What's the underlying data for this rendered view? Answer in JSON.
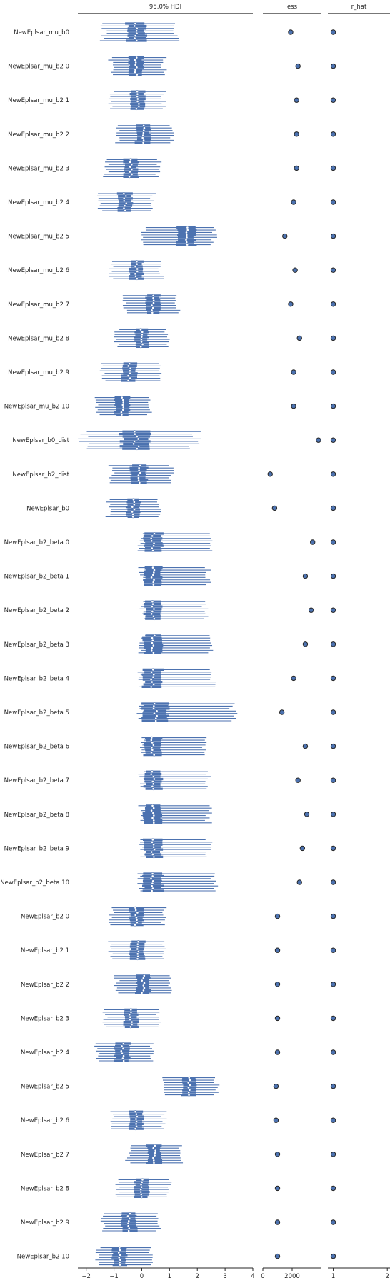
{
  "chart_data": {
    "type": "forest",
    "panels": [
      {
        "key": "hdi",
        "title": "95.0% HDI",
        "xlim": [
          -2.3,
          4.0
        ],
        "ticks": [
          -2,
          -1,
          0,
          1,
          2,
          3,
          4
        ],
        "tick_labels": [
          "−2",
          "−1",
          "0",
          "1",
          "2",
          "3",
          "4"
        ]
      },
      {
        "key": "ess",
        "title": "ess",
        "xlim": [
          0,
          4000
        ],
        "ticks": [
          0,
          2000
        ],
        "tick_labels": [
          "0",
          "2000"
        ]
      },
      {
        "key": "r_hat",
        "title": "r_hat",
        "xlim": [
          0.9,
          2.05
        ],
        "ticks": [
          1,
          2
        ],
        "tick_labels": [
          "1",
          "2"
        ]
      }
    ],
    "parameters": [
      {
        "label": "NewEplsar_mu_b0",
        "median": -0.2,
        "lower": -1.4,
        "upper": 1.2,
        "ess": 1900,
        "r_hat": 1.0
      },
      {
        "label": "NewEplsar_mu_b2 0",
        "median": -0.2,
        "lower": -1.1,
        "upper": 0.8,
        "ess": 2400,
        "r_hat": 1.0
      },
      {
        "label": "NewEplsar_mu_b2 1",
        "median": -0.15,
        "lower": -1.1,
        "upper": 0.8,
        "ess": 2300,
        "r_hat": 1.0
      },
      {
        "label": "NewEplsar_mu_b2 2",
        "median": 0.05,
        "lower": -0.9,
        "upper": 1.1,
        "ess": 2300,
        "r_hat": 1.0
      },
      {
        "label": "NewEplsar_mu_b2 3",
        "median": -0.4,
        "lower": -1.3,
        "upper": 0.6,
        "ess": 2300,
        "r_hat": 1.0
      },
      {
        "label": "NewEplsar_mu_b2 4",
        "median": -0.6,
        "lower": -1.5,
        "upper": 0.4,
        "ess": 2100,
        "r_hat": 1.0
      },
      {
        "label": "NewEplsar_mu_b2 5",
        "median": 1.6,
        "lower": 0.1,
        "upper": 2.6,
        "ess": 1500,
        "r_hat": 1.0
      },
      {
        "label": "NewEplsar_mu_b2 6",
        "median": -0.2,
        "lower": -1.1,
        "upper": 0.7,
        "ess": 2200,
        "r_hat": 1.0
      },
      {
        "label": "NewEplsar_mu_b2 7",
        "median": 0.4,
        "lower": -0.6,
        "upper": 1.3,
        "ess": 1900,
        "r_hat": 1.0
      },
      {
        "label": "NewEplsar_mu_b2 8",
        "median": 0.0,
        "lower": -0.9,
        "upper": 0.9,
        "ess": 2500,
        "r_hat": 1.0
      },
      {
        "label": "NewEplsar_mu_b2 9",
        "median": -0.45,
        "lower": -1.4,
        "upper": 0.6,
        "ess": 2100,
        "r_hat": 1.0
      },
      {
        "label": "NewEplsar_mu_b2 10",
        "median": -0.7,
        "lower": -1.6,
        "upper": 0.3,
        "ess": 2100,
        "r_hat": 1.0
      },
      {
        "label": "NewEplsar_b0_dist",
        "median": -0.2,
        "lower": -2.1,
        "upper": 1.9,
        "ess": 3800,
        "r_hat": 1.0
      },
      {
        "label": "NewEplsar_b2_dist",
        "median": -0.1,
        "lower": -1.1,
        "upper": 1.1,
        "ess": 500,
        "r_hat": 1.0
      },
      {
        "label": "NewEplsar_b0",
        "median": -0.3,
        "lower": -1.2,
        "upper": 0.6,
        "ess": 800,
        "r_hat": 1.0
      },
      {
        "label": "NewEplsar_b2_beta 0",
        "median": 0.4,
        "lower": 0.0,
        "upper": 2.5,
        "ess": 3400,
        "r_hat": 1.0
      },
      {
        "label": "NewEplsar_b2_beta 1",
        "median": 0.4,
        "lower": 0.0,
        "upper": 2.4,
        "ess": 2900,
        "r_hat": 1.0
      },
      {
        "label": "NewEplsar_b2_beta 2",
        "median": 0.4,
        "lower": 0.0,
        "upper": 2.3,
        "ess": 3300,
        "r_hat": 1.0
      },
      {
        "label": "NewEplsar_b2_beta 3",
        "median": 0.4,
        "lower": 0.0,
        "upper": 2.5,
        "ess": 2900,
        "r_hat": 1.0
      },
      {
        "label": "NewEplsar_b2_beta 4",
        "median": 0.4,
        "lower": 0.0,
        "upper": 2.6,
        "ess": 2100,
        "r_hat": 1.0
      },
      {
        "label": "NewEplsar_b2_beta 5",
        "median": 0.5,
        "lower": 0.0,
        "upper": 3.3,
        "ess": 1300,
        "r_hat": 1.0
      },
      {
        "label": "NewEplsar_b2_beta 6",
        "median": 0.4,
        "lower": 0.0,
        "upper": 2.3,
        "ess": 2900,
        "r_hat": 1.0
      },
      {
        "label": "NewEplsar_b2_beta 7",
        "median": 0.4,
        "lower": 0.0,
        "upper": 2.4,
        "ess": 2400,
        "r_hat": 1.0
      },
      {
        "label": "NewEplsar_b2_beta 8",
        "median": 0.4,
        "lower": 0.0,
        "upper": 2.4,
        "ess": 3000,
        "r_hat": 1.0
      },
      {
        "label": "NewEplsar_b2_beta 9",
        "median": 0.4,
        "lower": 0.0,
        "upper": 2.4,
        "ess": 2700,
        "r_hat": 1.0
      },
      {
        "label": "NewEplsar_b2_beta 10",
        "median": 0.4,
        "lower": 0.0,
        "upper": 2.6,
        "ess": 2500,
        "r_hat": 1.0
      },
      {
        "label": "NewEplsar_b2 0",
        "median": -0.2,
        "lower": -1.1,
        "upper": 0.8,
        "ess": 1000,
        "r_hat": 1.0
      },
      {
        "label": "NewEplsar_b2 1",
        "median": -0.15,
        "lower": -1.1,
        "upper": 0.8,
        "ess": 1000,
        "r_hat": 1.0
      },
      {
        "label": "NewEplsar_b2 2",
        "median": 0.05,
        "lower": -0.9,
        "upper": 1.0,
        "ess": 1000,
        "r_hat": 1.0
      },
      {
        "label": "NewEplsar_b2 3",
        "median": -0.4,
        "lower": -1.3,
        "upper": 0.6,
        "ess": 1000,
        "r_hat": 1.0
      },
      {
        "label": "NewEplsar_b2 4",
        "median": -0.7,
        "lower": -1.6,
        "upper": 0.4,
        "ess": 1000,
        "r_hat": 1.0
      },
      {
        "label": "NewEplsar_b2 5",
        "median": 1.7,
        "lower": 0.8,
        "upper": 2.7,
        "ess": 900,
        "r_hat": 1.0
      },
      {
        "label": "NewEplsar_b2 6",
        "median": -0.2,
        "lower": -1.1,
        "upper": 0.8,
        "ess": 900,
        "r_hat": 1.0
      },
      {
        "label": "NewEplsar_b2 7",
        "median": 0.45,
        "lower": -0.5,
        "upper": 1.4,
        "ess": 1000,
        "r_hat": 1.0
      },
      {
        "label": "NewEplsar_b2 8",
        "median": 0.0,
        "lower": -0.9,
        "upper": 1.0,
        "ess": 1000,
        "r_hat": 1.0
      },
      {
        "label": "NewEplsar_b2 9",
        "median": -0.45,
        "lower": -1.4,
        "upper": 0.6,
        "ess": 1000,
        "r_hat": 1.0
      },
      {
        "label": "NewEplsar_b2 10",
        "median": -0.8,
        "lower": -1.6,
        "upper": 0.3,
        "ess": 1000,
        "r_hat": 1.0
      }
    ],
    "chains": 8,
    "colors": {
      "interval": "#4c72b0",
      "marker_edge": "#262626",
      "median_fill": "#ffffff"
    }
  }
}
